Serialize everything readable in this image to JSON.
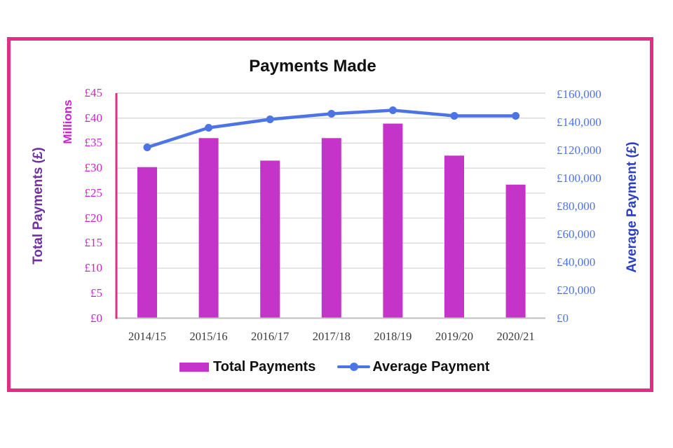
{
  "title": "Payments Made",
  "chart_data": {
    "type": "bar+line combo",
    "categories": [
      "2014/15",
      "2015/16",
      "2016/17",
      "2017/18",
      "2018/19",
      "2019/20",
      "2020/21"
    ],
    "series": [
      {
        "name": "Total Payments",
        "type": "bar",
        "axis": "left",
        "units": "£ millions",
        "values": [
          30.2,
          36.0,
          31.5,
          36.0,
          38.9,
          32.5,
          26.7
        ]
      },
      {
        "name": "Average Payment",
        "type": "line",
        "axis": "right",
        "units": "£",
        "values": [
          122000,
          136000,
          142000,
          146000,
          148500,
          144500,
          144500
        ]
      }
    ],
    "left_axis": {
      "title": "Total Payments (£)",
      "units_label": "Millions",
      "min": 0,
      "max": 45,
      "step": 5,
      "tick_labels": [
        "£45",
        "£40",
        "£35",
        "£30",
        "£25",
        "£20",
        "£15",
        "£10",
        "£5",
        "£0"
      ]
    },
    "right_axis": {
      "title": "Average Payment (£)",
      "min": 0,
      "max": 160000,
      "step": 20000,
      "tick_labels": [
        "£160,000",
        "£140,000",
        "£120,000",
        "£100,000",
        "£80,000",
        "£60,000",
        "£40,000",
        "£20,000",
        "£0"
      ]
    },
    "legend": [
      "Total Payments",
      "Average Payment"
    ],
    "grid": true,
    "legend_position": "bottom"
  },
  "colors": {
    "frame_border": "#e22d85",
    "bar_fill": "#c434c8",
    "line_stroke": "#4d74e4",
    "left_tick_text": "#cc22cc",
    "left_axis_title_text": "#7030A0",
    "right_tick_text": "#4b74e8",
    "right_axis_title_text": "#2b3ec8",
    "category_text": "#3a3a3a",
    "gridline": "#d9d9d9",
    "baseline": "#bfbfbf",
    "left_axis_line": "#e22d85",
    "title_text": "#111111"
  }
}
